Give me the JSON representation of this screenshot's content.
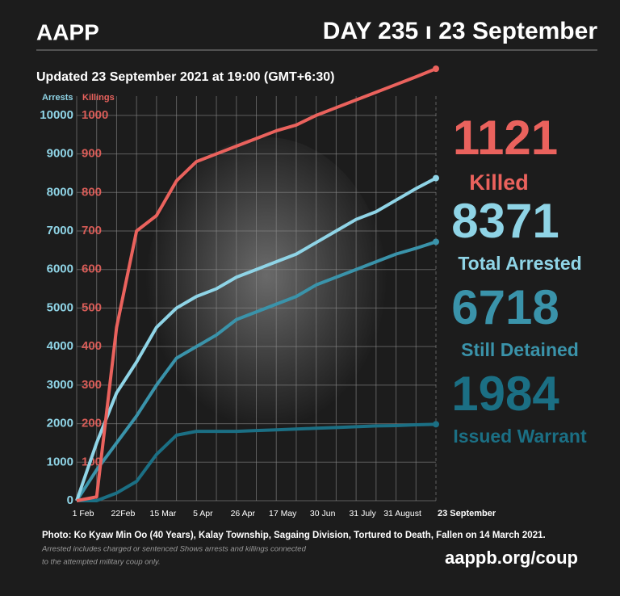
{
  "header": {
    "logo": "AAPP",
    "day": "DAY 235 ı 23 September",
    "updated": "Updated 23 September 2021 at 19:00 (GMT+6:30)"
  },
  "footer": {
    "caption": "Photo:  Ko Kyaw Min Oo (40 Years), Kalay Township, Sagaing Division, Tortured to Death, Fallen on 14 March 2021.",
    "notes": [
      "Arrested includes charged or sentenced Shows arrests and killings connected",
      "to the attempted military coup only."
    ],
    "url": "aappb.org/coup"
  },
  "chart_data": {
    "type": "line",
    "ylabel": "Arrests",
    "y2label": "Killings",
    "categories": [
      "1 Feb",
      null,
      "22Feb",
      null,
      "15 Mar",
      null,
      "5 Apr",
      null,
      "26 Apr",
      null,
      "17 May",
      null,
      "30 Jun",
      null,
      "31 July",
      null,
      "31 August",
      null,
      "23 September"
    ],
    "ylim": [
      0,
      10500
    ],
    "yticks": [
      0,
      1000,
      2000,
      3000,
      4000,
      5000,
      6000,
      7000,
      8000,
      9000,
      10000
    ],
    "y2lim": [
      0,
      1050
    ],
    "y2ticks": [
      100,
      200,
      300,
      400,
      500,
      600,
      700,
      800,
      900,
      1000
    ],
    "grid": true,
    "series": [
      {
        "name": "Killed",
        "color": "#ea625d",
        "axis": "y2",
        "values": [
          0,
          10,
          450,
          700,
          740,
          830,
          880,
          900,
          920,
          940,
          960,
          975,
          1000,
          1020,
          1040,
          1060,
          1080,
          1100,
          1121
        ]
      },
      {
        "name": "Total Arrested",
        "color": "#8fd4e6",
        "values": [
          0,
          1500,
          2800,
          3600,
          4500,
          5000,
          5300,
          5500,
          5800,
          6000,
          6200,
          6400,
          6700,
          7000,
          7300,
          7500,
          7800,
          8100,
          8371
        ]
      },
      {
        "name": "Still Detained",
        "color": "#3a93aa",
        "values": [
          0,
          800,
          1500,
          2200,
          3000,
          3700,
          4000,
          4300,
          4700,
          4900,
          5100,
          5300,
          5600,
          5800,
          6000,
          6200,
          6400,
          6550,
          6718
        ]
      },
      {
        "name": "Issued Warrant",
        "color": "#1b6f84",
        "values": [
          0,
          0,
          200,
          500,
          1200,
          1700,
          1800,
          1800,
          1800,
          1820,
          1840,
          1860,
          1880,
          1900,
          1920,
          1940,
          1950,
          1970,
          1984
        ]
      }
    ]
  }
}
